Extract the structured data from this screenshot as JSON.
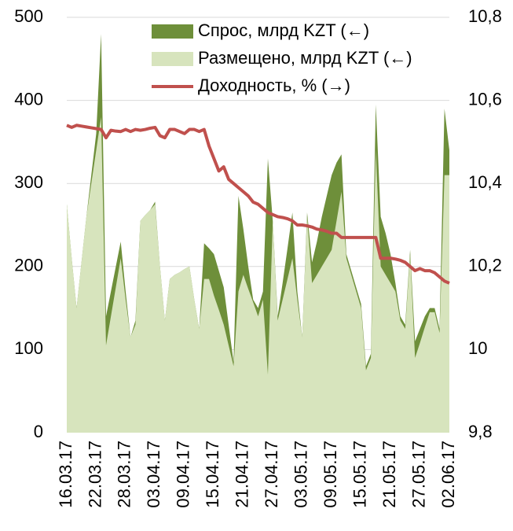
{
  "chart_data": {
    "type": "area-line",
    "categories": [
      "16.03.17",
      null,
      null,
      null,
      null,
      null,
      "22.03.17",
      null,
      null,
      null,
      null,
      null,
      "28.03.17",
      null,
      null,
      null,
      null,
      null,
      "03.04.17",
      null,
      null,
      null,
      null,
      null,
      "09.04.17",
      null,
      null,
      null,
      null,
      null,
      "15.04.17",
      null,
      null,
      null,
      null,
      null,
      "21.04.17",
      null,
      null,
      null,
      null,
      null,
      "27.04.17",
      null,
      null,
      null,
      null,
      null,
      "03.05.17",
      null,
      null,
      null,
      null,
      null,
      "09.05.17",
      null,
      null,
      null,
      null,
      null,
      "15.05.17",
      null,
      null,
      null,
      null,
      null,
      "21.05.17",
      null,
      null,
      null,
      null,
      null,
      "27.05.17",
      null,
      null,
      null,
      null,
      null,
      "02.06.17"
    ],
    "series": [
      {
        "name": "Спрос, млрд KZT (←)",
        "color": "#6e8f3a",
        "axis": "y",
        "values": [
          275,
          210,
          150,
          205,
          260,
          310,
          360,
          480,
          140,
          170,
          200,
          230,
          170,
          115,
          135,
          255,
          262,
          268,
          278,
          200,
          135,
          185,
          190,
          193,
          197,
          200,
          160,
          125,
          228,
          222,
          215,
          195,
          175,
          130,
          85,
          285,
          245,
          200,
          160,
          150,
          170,
          330,
          255,
          140,
          180,
          222,
          265,
          170,
          115,
          265,
          205,
          230,
          260,
          285,
          310,
          325,
          335,
          215,
          195,
          175,
          155,
          80,
          95,
          395,
          260,
          240,
          215,
          180,
          140,
          130,
          220,
          110,
          125,
          140,
          150,
          150,
          125,
          390,
          340
        ]
      },
      {
        "name": "Размещено, млрд KZT (←)",
        "color": "#d7e4bd",
        "axis": "y",
        "values": [
          275,
          210,
          150,
          205,
          260,
          300,
          340,
          380,
          105,
          140,
          175,
          210,
          160,
          115,
          130,
          255,
          262,
          268,
          275,
          200,
          135,
          185,
          190,
          193,
          197,
          200,
          160,
          125,
          185,
          185,
          165,
          148,
          130,
          105,
          80,
          170,
          190,
          173,
          157,
          140,
          160,
          70,
          255,
          135,
          160,
          185,
          210,
          160,
          115,
          260,
          180,
          190,
          200,
          210,
          220,
          255,
          290,
          210,
          190,
          170,
          150,
          75,
          90,
          340,
          200,
          190,
          180,
          170,
          135,
          125,
          215,
          90,
          108,
          127,
          145,
          145,
          120,
          310,
          310
        ]
      },
      {
        "name": "Доходность, % (→)",
        "color": "#c0504d",
        "axis": "y2",
        "values": [
          10.54,
          10.535,
          10.54,
          10.538,
          10.536,
          10.534,
          10.532,
          10.53,
          10.51,
          10.528,
          10.526,
          10.525,
          10.53,
          10.525,
          10.53,
          10.528,
          10.53,
          10.533,
          10.535,
          10.515,
          10.51,
          10.53,
          10.53,
          10.525,
          10.52,
          10.53,
          10.53,
          10.525,
          10.53,
          10.49,
          10.46,
          10.43,
          10.44,
          10.41,
          10.4,
          10.39,
          10.38,
          10.37,
          10.355,
          10.35,
          10.34,
          10.33,
          10.325,
          10.32,
          10.318,
          10.315,
          10.31,
          10.3,
          10.3,
          10.298,
          10.295,
          10.29,
          10.288,
          10.285,
          10.28,
          10.28,
          10.27,
          10.27,
          10.27,
          10.27,
          10.27,
          10.27,
          10.27,
          10.27,
          10.22,
          10.22,
          10.22,
          10.218,
          10.215,
          10.21,
          10.2,
          10.19,
          10.195,
          10.19,
          10.19,
          10.185,
          10.175,
          10.165,
          10.16
        ]
      }
    ],
    "ylim": [
      0,
      500
    ],
    "yticks": [
      0,
      100,
      200,
      300,
      400,
      500
    ],
    "y2lim": [
      9.8,
      10.8
    ],
    "y2ticks": [
      {
        "value": 9.8,
        "label": "9,8"
      },
      10,
      {
        "value": 10.2,
        "label": "10,2"
      },
      {
        "value": 10.4,
        "label": "10,4"
      },
      {
        "value": 10.6,
        "label": "10,6"
      },
      {
        "value": 10.8,
        "label": "10,8"
      }
    ],
    "grid": true,
    "legend": "top"
  }
}
